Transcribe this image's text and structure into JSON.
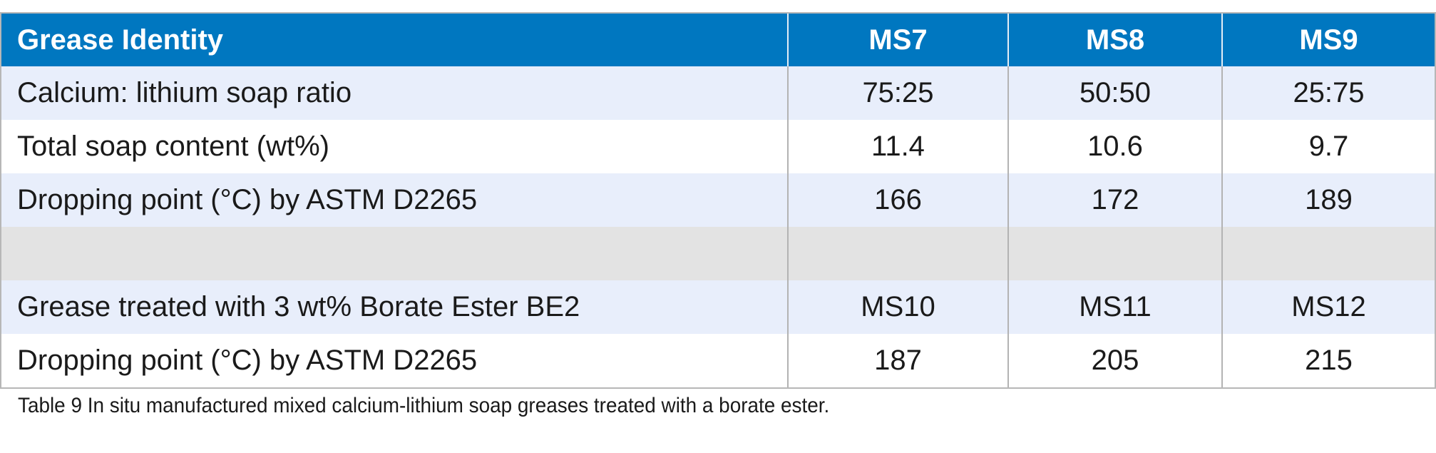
{
  "table": {
    "header": [
      "Grease Identity",
      "MS7",
      "MS8",
      "MS9"
    ],
    "rows": [
      {
        "label": "Calcium: lithium soap ratio",
        "values": [
          "75:25",
          "50:50",
          "25:75"
        ]
      },
      {
        "label": "Total soap content (wt%)",
        "values": [
          "11.4",
          "10.6",
          "9.7"
        ]
      },
      {
        "label": "Dropping point (°C) by ASTM D2265",
        "values": [
          "166",
          "172",
          "189"
        ]
      },
      {
        "label": "",
        "values": [
          "",
          "",
          ""
        ]
      },
      {
        "label": "Grease treated with 3 wt% Borate Ester BE2",
        "values": [
          "MS10",
          "MS11",
          "MS12"
        ]
      },
      {
        "label": "Dropping point (°C) by ASTM D2265",
        "values": [
          "187",
          "205",
          "215"
        ]
      }
    ]
  },
  "caption": "Table 9 In situ manufactured mixed calcium-lithium soap greases treated with a borate ester.",
  "colors": {
    "header_bg": "#0077c0",
    "header_text": "#ffffff",
    "row_shade": "#e8eefb",
    "row_gap": "#e3e3e3",
    "border": "#b3b3b3"
  }
}
